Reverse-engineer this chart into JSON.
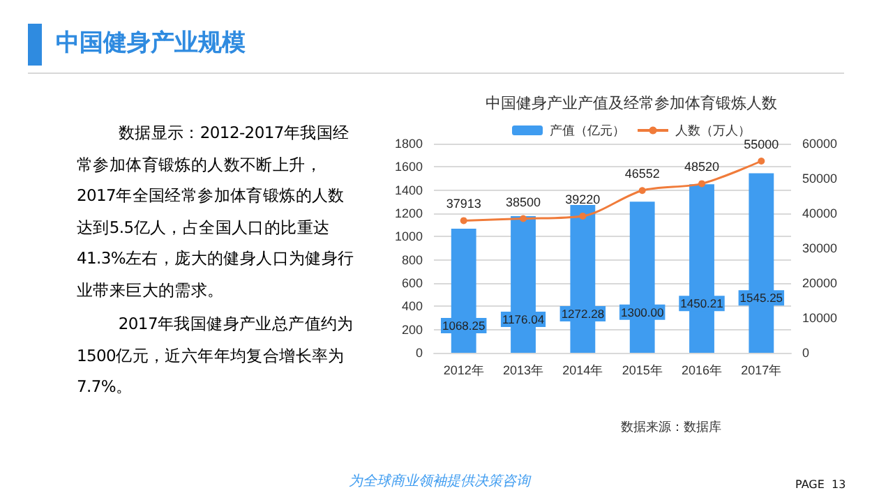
{
  "chart_data": {
    "type": "bar",
    "title": "中国健身产业产值及经常参加体育锻炼人数",
    "categories": [
      "2012年",
      "2013年",
      "2014年",
      "2015年",
      "2016年",
      "2017年"
    ],
    "series": [
      {
        "name": "产值（亿元）",
        "color": "#3f9cf0",
        "values": [
          1068.25,
          1176.04,
          1272.28,
          1300.0,
          1450.21,
          1545.25
        ],
        "value_labels": [
          "1068.25",
          "1176.04",
          "1272.28",
          "1300.00",
          "1450.21",
          "1545.25"
        ]
      },
      {
        "name": "人数（万人）",
        "type": "line",
        "axis": "y2",
        "color": "#f07b3a",
        "values": [
          37913,
          38500,
          39220,
          46552,
          48520,
          55000
        ],
        "value_labels": [
          "37913",
          "38500",
          "39220",
          "46552",
          "48520",
          "55000"
        ]
      }
    ],
    "ylim": [
      0,
      1800
    ],
    "yticks": [
      0,
      200,
      400,
      600,
      800,
      1000,
      1200,
      1400,
      1600,
      1800
    ],
    "y2lim": [
      0,
      60000
    ],
    "y2ticks": [
      0,
      10000,
      20000,
      30000,
      40000,
      50000,
      60000
    ],
    "grid": "y",
    "legend": "top",
    "marker": "circle",
    "line_style": "solid",
    "annotations": [
      "中国健身产业规模",
      "数据显示：2012-2017年我国经常参加体育锻炼的人数不断上升，2017年全国经常参加体育锻炼的人数达到5.5亿人，占全国人口的比重达41.3%左右，庞大的健身人口为健身行业带来巨大的需求。",
      "2017年我国健身产业总产值约为1500亿元，近六年年均复合增长率为7.7%。",
      "数据来源：数据库",
      "为全球商业领袖提供决策咨询",
      "PAGE  13"
    ]
  }
}
